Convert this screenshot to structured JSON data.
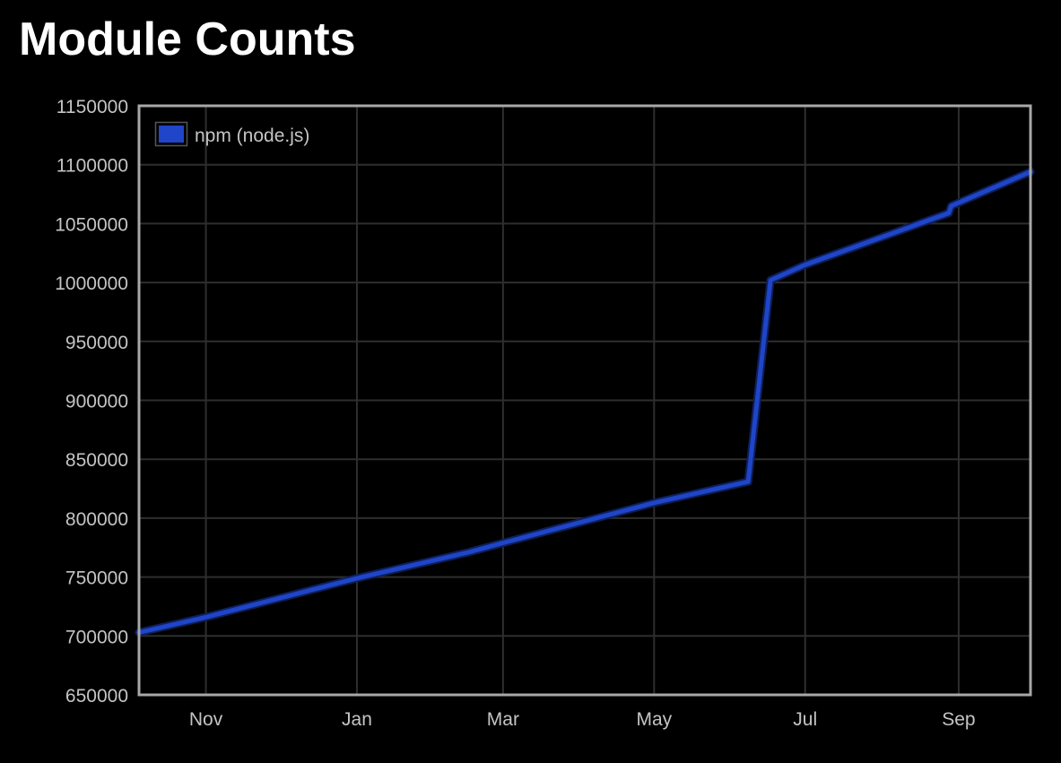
{
  "page": {
    "title": "Module Counts"
  },
  "chart_data": {
    "type": "line",
    "title": "Module Counts",
    "xlabel": "",
    "ylabel": "",
    "ylim": [
      650000,
      1150000
    ],
    "xlim": [
      "2013-10-05",
      "2014-09-30"
    ],
    "y_ticks": [
      650000,
      700000,
      750000,
      800000,
      850000,
      900000,
      950000,
      1000000,
      1050000,
      1100000,
      1150000
    ],
    "x_ticks": [
      {
        "label": "Nov",
        "date": "2013-11-01"
      },
      {
        "label": "Jan",
        "date": "2014-01-01"
      },
      {
        "label": "Mar",
        "date": "2014-03-01"
      },
      {
        "label": "May",
        "date": "2014-05-01"
      },
      {
        "label": "Jul",
        "date": "2014-07-01"
      },
      {
        "label": "Sep",
        "date": "2014-09-01"
      }
    ],
    "grid": true,
    "legend": {
      "position": "top-left"
    },
    "series": [
      {
        "name": "npm (node.js)",
        "color": "#1f45c8",
        "points": [
          {
            "x": "2013-10-05",
            "y": 703000
          },
          {
            "x": "2013-11-01",
            "y": 716000
          },
          {
            "x": "2014-01-01",
            "y": 749000
          },
          {
            "x": "2014-02-15",
            "y": 771000
          },
          {
            "x": "2014-03-01",
            "y": 779000
          },
          {
            "x": "2014-05-01",
            "y": 813000
          },
          {
            "x": "2014-06-08",
            "y": 831000
          },
          {
            "x": "2014-06-17",
            "y": 1002000
          },
          {
            "x": "2014-07-01",
            "y": 1015000
          },
          {
            "x": "2014-08-28",
            "y": 1059000
          },
          {
            "x": "2014-08-29",
            "y": 1065000
          },
          {
            "x": "2014-09-30",
            "y": 1094000
          }
        ]
      }
    ]
  }
}
